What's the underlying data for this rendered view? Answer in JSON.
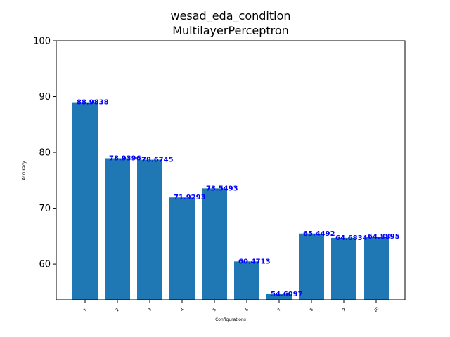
{
  "chart_data": {
    "type": "bar",
    "title": [
      "wesad_eda_condition",
      "MultilayerPerceptron"
    ],
    "xlabel": "Configurations",
    "ylabel": "Accuracy",
    "ylim": [
      53.6,
      100
    ],
    "yticks": [
      60,
      70,
      80,
      90,
      100
    ],
    "categories": [
      "1",
      "2",
      "3",
      "4",
      "5",
      "6",
      "7",
      "8",
      "9",
      "10"
    ],
    "values": [
      88.9838,
      78.9396,
      78.6745,
      71.9293,
      73.5493,
      60.4713,
      54.6097,
      65.4492,
      64.6834,
      64.8895
    ],
    "value_labels": [
      "88.9838",
      "78.9396",
      "78.6745",
      "71.9293",
      "73.5493",
      "60.4713",
      "54.6097",
      "65.4492",
      "64.6834",
      "64.8895"
    ],
    "grid": false,
    "bar_color": "#1f77b4",
    "label_color": "#0000ff"
  }
}
